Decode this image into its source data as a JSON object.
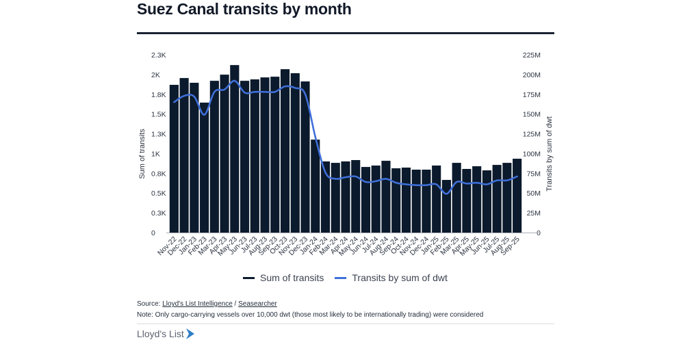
{
  "header": {
    "title": "Suez Canal transits by month"
  },
  "legend": {
    "items": [
      {
        "label": "Sum of transits",
        "color": "#0b1a2c"
      },
      {
        "label": "Transits by sum of dwt",
        "color": "#3f6fd8"
      }
    ]
  },
  "footer": {
    "source_prefix": "Source: ",
    "source_link_1": "Lloyd's List Intelligence",
    "source_sep": " / ",
    "source_link_2": "Seasearcher",
    "note": "Note: Only cargo-carrying vessels over 10,000 dwt (those most likely to be internationally trading) were considered",
    "logo_text": "Lloyd's List",
    "logo_color": "#2f7fc4"
  },
  "chart_data": {
    "type": "bar+line",
    "title": "Suez Canal transits by month",
    "xlabel": "",
    "ylabel": "Sum of transits",
    "y2label": "Transits by sum of dwt",
    "ylim": [
      0,
      2250
    ],
    "y2lim": [
      0,
      225
    ],
    "y_ticks": [
      0,
      250,
      500,
      750,
      1000,
      1250,
      1500,
      1750,
      2000,
      2250
    ],
    "y_tick_labels": [
      "0",
      "0.3K",
      "0.5K",
      "0.8K",
      "1K",
      "1.3K",
      "1.5K",
      "1.8K",
      "2K",
      "2.3K"
    ],
    "y2_ticks": [
      0,
      25,
      50,
      75,
      100,
      125,
      150,
      175,
      200,
      225
    ],
    "y2_tick_labels": [
      "0",
      "25M",
      "50M",
      "75M",
      "100M",
      "125M",
      "150M",
      "175M",
      "200M",
      "225M"
    ],
    "grid": false,
    "legend_position": "bottom",
    "categories": [
      "Nov-22",
      "Dec-22",
      "Jan-23",
      "Feb-23",
      "Mar-23",
      "Apr-23",
      "May-23",
      "Jun-23",
      "Jul-23",
      "Aug-23",
      "Sep-23",
      "Oct-23",
      "Nov-23",
      "Dec-23",
      "Jan-24",
      "Feb-24",
      "Mar-24",
      "Apr-24",
      "May-24",
      "Jun-24",
      "Jul-24",
      "Aug-24",
      "Sep-24",
      "Oct-24",
      "Nov-24",
      "Dec-24",
      "Jan-25",
      "Feb-25",
      "Mar-25",
      "Apr-25",
      "May-25",
      "Jun-25",
      "Jul-25",
      "Aug-25",
      "Sep-25"
    ],
    "series": [
      {
        "name": "Sum of transits",
        "type": "bar",
        "axis": "left",
        "color": "#0b1a2c",
        "values": [
          1869,
          1955,
          1895,
          1644,
          1920,
          1998,
          2119,
          1920,
          1938,
          1963,
          1972,
          2067,
          2016,
          1912,
          1176,
          900,
          882,
          900,
          917,
          830,
          848,
          908,
          813,
          822,
          796,
          796,
          848,
          666,
          882,
          805,
          839,
          787,
          856,
          882,
          934
        ]
      },
      {
        "name": "Transits by sum of dwt",
        "type": "line",
        "axis": "right",
        "unit": "M",
        "color": "#3f6fd8",
        "values": [
          165,
          173,
          172,
          149,
          178,
          181,
          192,
          177,
          178,
          178,
          178,
          185,
          183,
          175,
          121,
          76,
          68,
          70,
          71,
          64,
          65,
          68,
          63,
          61,
          60,
          60,
          61,
          49,
          64,
          62,
          63,
          61,
          66,
          66,
          71
        ]
      }
    ]
  }
}
